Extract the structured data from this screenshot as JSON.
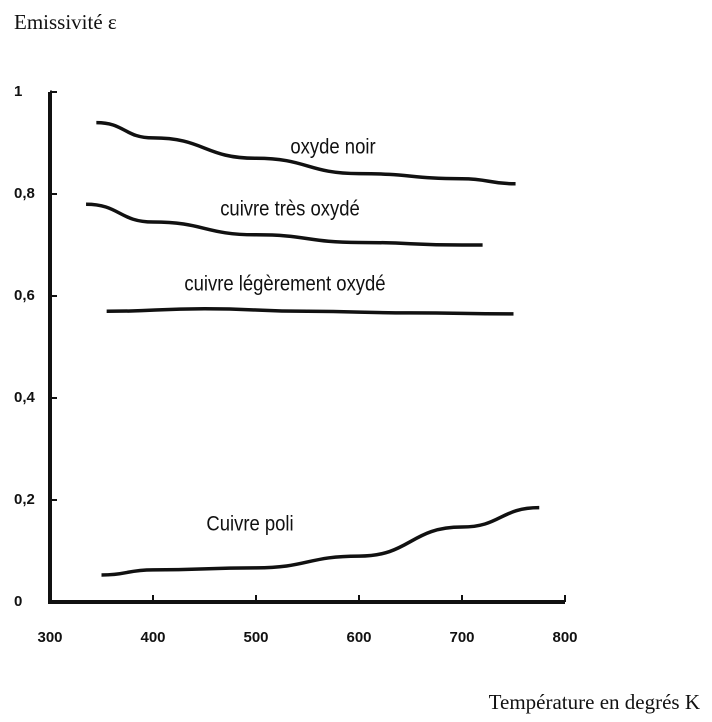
{
  "chart_data": {
    "type": "line",
    "y_label": "Emissivité ε",
    "x_label": "Température en degrés K",
    "xlim": [
      300,
      800
    ],
    "xticks": [
      300,
      400,
      500,
      600,
      700,
      800
    ],
    "ylim": [
      0,
      1
    ],
    "yticks": [
      0,
      {
        "value": 0.2,
        "label": "0,2"
      },
      {
        "value": 0.4,
        "label": "0,4"
      },
      {
        "value": 0.6,
        "label": "0,6"
      },
      {
        "value": 0.8,
        "label": "0,8"
      },
      1
    ],
    "color": "#111111",
    "series": [
      {
        "name": "oxyde noir",
        "x": [
          345,
          400,
          500,
          600,
          700,
          752
        ],
        "values": [
          0.94,
          0.91,
          0.87,
          0.84,
          0.83,
          0.82
        ]
      },
      {
        "name": "cuivre très oxydé",
        "x": [
          335,
          400,
          500,
          600,
          700,
          720
        ],
        "values": [
          0.78,
          0.745,
          0.72,
          0.705,
          0.7,
          0.7
        ]
      },
      {
        "name": "cuivre légèrement oxydé",
        "x": [
          355,
          450,
          550,
          650,
          750
        ],
        "values": [
          0.57,
          0.575,
          0.57,
          0.567,
          0.565
        ]
      },
      {
        "name": "Cuivre poli",
        "x": [
          350,
          400,
          500,
          600,
          700,
          775
        ],
        "values": [
          0.053,
          0.063,
          0.067,
          0.09,
          0.147,
          0.185
        ]
      }
    ]
  }
}
